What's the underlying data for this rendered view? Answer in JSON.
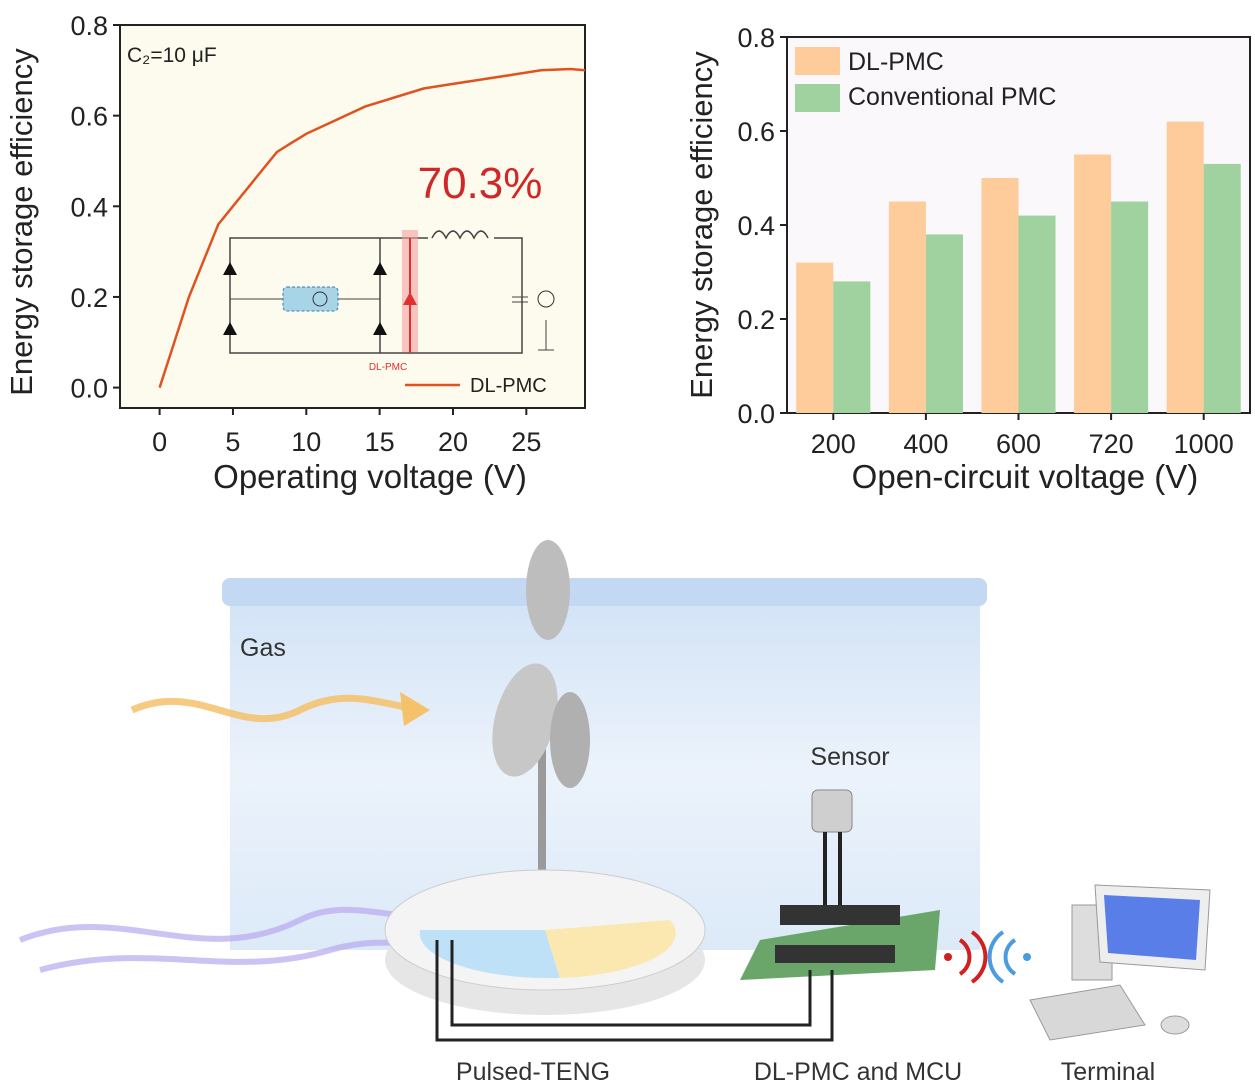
{
  "chart_data": [
    {
      "type": "line",
      "xlabel": "Operating voltage (V)",
      "ylabel": "Energy storage efficiency",
      "xlim": [
        -2.7,
        29
      ],
      "ylim": [
        -0.045,
        0.8
      ],
      "xticks": [
        0,
        5,
        10,
        15,
        20,
        25
      ],
      "yticks": [
        "0.0",
        "0.2",
        "0.4",
        "0.6",
        "0.8"
      ],
      "annotation": "C₂=10 μF",
      "highlight": "70.3%",
      "legend": "bottom-right",
      "grid": false,
      "background": "#fdfbee",
      "inset_label": "DL-PMC",
      "series": [
        {
          "name": "DL-PMC",
          "color": "#e0521f",
          "x": [
            0,
            1,
            2,
            3,
            4,
            5,
            6,
            7,
            8,
            9,
            10,
            12,
            14,
            16,
            18,
            20,
            22,
            24,
            26,
            28,
            29
          ],
          "y": [
            0.0,
            0.1,
            0.2,
            0.28,
            0.36,
            0.4,
            0.44,
            0.48,
            0.52,
            0.54,
            0.56,
            0.59,
            0.62,
            0.64,
            0.66,
            0.67,
            0.68,
            0.69,
            0.7,
            0.703,
            0.7
          ]
        }
      ]
    },
    {
      "type": "bar",
      "xlabel": "Open-circuit voltage (V)",
      "ylabel": "Energy storage efficiency",
      "ylim": [
        0,
        0.8
      ],
      "yticks": [
        "0.0",
        "0.2",
        "0.4",
        "0.6",
        "0.8"
      ],
      "categories": [
        "200",
        "400",
        "600",
        "720",
        "1000"
      ],
      "legend": "top-left",
      "grid": false,
      "background": "#fbf8fc",
      "series": [
        {
          "name": "DL-PMC",
          "color": "#fdcc9a",
          "values": [
            0.32,
            0.45,
            0.5,
            0.55,
            0.62
          ]
        },
        {
          "name": "Conventional PMC",
          "color": "#9fd29f",
          "values": [
            0.28,
            0.38,
            0.42,
            0.45,
            0.53
          ]
        }
      ]
    }
  ],
  "illustration": {
    "gas_label": "Gas",
    "sensor_label": "Sensor",
    "teng_label": "Pulsed-TENG",
    "pmc_label": "DL-PMC and MCU",
    "terminal_label": "Terminal"
  }
}
